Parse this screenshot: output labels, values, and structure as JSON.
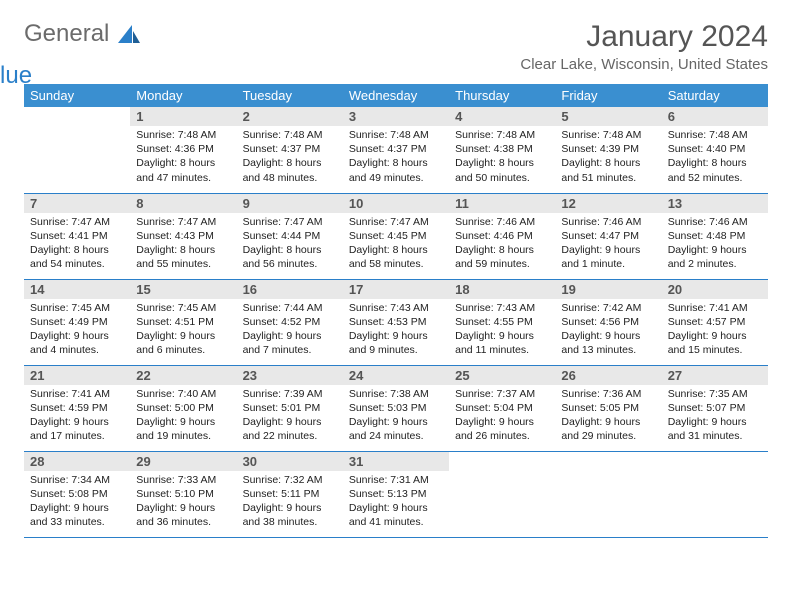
{
  "brand": {
    "part1": "General",
    "part2": "Blue"
  },
  "colors": {
    "header_bg": "#3a8fd0",
    "header_text": "#ffffff",
    "daynum_bg": "#e8e8e8",
    "daynum_text": "#555555",
    "body_text": "#222222",
    "rule": "#2a7fc9",
    "brand_gray": "#6b6b6b",
    "brand_blue": "#2a7fc9",
    "page_bg": "#ffffff"
  },
  "title": "January 2024",
  "location": "Clear Lake, Wisconsin, United States",
  "day_headers": [
    "Sunday",
    "Monday",
    "Tuesday",
    "Wednesday",
    "Thursday",
    "Friday",
    "Saturday"
  ],
  "weeks": [
    [
      {
        "n": "",
        "lines": [
          "",
          "",
          "",
          ""
        ]
      },
      {
        "n": "1",
        "lines": [
          "Sunrise: 7:48 AM",
          "Sunset: 4:36 PM",
          "Daylight: 8 hours",
          "and 47 minutes."
        ]
      },
      {
        "n": "2",
        "lines": [
          "Sunrise: 7:48 AM",
          "Sunset: 4:37 PM",
          "Daylight: 8 hours",
          "and 48 minutes."
        ]
      },
      {
        "n": "3",
        "lines": [
          "Sunrise: 7:48 AM",
          "Sunset: 4:37 PM",
          "Daylight: 8 hours",
          "and 49 minutes."
        ]
      },
      {
        "n": "4",
        "lines": [
          "Sunrise: 7:48 AM",
          "Sunset: 4:38 PM",
          "Daylight: 8 hours",
          "and 50 minutes."
        ]
      },
      {
        "n": "5",
        "lines": [
          "Sunrise: 7:48 AM",
          "Sunset: 4:39 PM",
          "Daylight: 8 hours",
          "and 51 minutes."
        ]
      },
      {
        "n": "6",
        "lines": [
          "Sunrise: 7:48 AM",
          "Sunset: 4:40 PM",
          "Daylight: 8 hours",
          "and 52 minutes."
        ]
      }
    ],
    [
      {
        "n": "7",
        "lines": [
          "Sunrise: 7:47 AM",
          "Sunset: 4:41 PM",
          "Daylight: 8 hours",
          "and 54 minutes."
        ]
      },
      {
        "n": "8",
        "lines": [
          "Sunrise: 7:47 AM",
          "Sunset: 4:43 PM",
          "Daylight: 8 hours",
          "and 55 minutes."
        ]
      },
      {
        "n": "9",
        "lines": [
          "Sunrise: 7:47 AM",
          "Sunset: 4:44 PM",
          "Daylight: 8 hours",
          "and 56 minutes."
        ]
      },
      {
        "n": "10",
        "lines": [
          "Sunrise: 7:47 AM",
          "Sunset: 4:45 PM",
          "Daylight: 8 hours",
          "and 58 minutes."
        ]
      },
      {
        "n": "11",
        "lines": [
          "Sunrise: 7:46 AM",
          "Sunset: 4:46 PM",
          "Daylight: 8 hours",
          "and 59 minutes."
        ]
      },
      {
        "n": "12",
        "lines": [
          "Sunrise: 7:46 AM",
          "Sunset: 4:47 PM",
          "Daylight: 9 hours",
          "and 1 minute."
        ]
      },
      {
        "n": "13",
        "lines": [
          "Sunrise: 7:46 AM",
          "Sunset: 4:48 PM",
          "Daylight: 9 hours",
          "and 2 minutes."
        ]
      }
    ],
    [
      {
        "n": "14",
        "lines": [
          "Sunrise: 7:45 AM",
          "Sunset: 4:49 PM",
          "Daylight: 9 hours",
          "and 4 minutes."
        ]
      },
      {
        "n": "15",
        "lines": [
          "Sunrise: 7:45 AM",
          "Sunset: 4:51 PM",
          "Daylight: 9 hours",
          "and 6 minutes."
        ]
      },
      {
        "n": "16",
        "lines": [
          "Sunrise: 7:44 AM",
          "Sunset: 4:52 PM",
          "Daylight: 9 hours",
          "and 7 minutes."
        ]
      },
      {
        "n": "17",
        "lines": [
          "Sunrise: 7:43 AM",
          "Sunset: 4:53 PM",
          "Daylight: 9 hours",
          "and 9 minutes."
        ]
      },
      {
        "n": "18",
        "lines": [
          "Sunrise: 7:43 AM",
          "Sunset: 4:55 PM",
          "Daylight: 9 hours",
          "and 11 minutes."
        ]
      },
      {
        "n": "19",
        "lines": [
          "Sunrise: 7:42 AM",
          "Sunset: 4:56 PM",
          "Daylight: 9 hours",
          "and 13 minutes."
        ]
      },
      {
        "n": "20",
        "lines": [
          "Sunrise: 7:41 AM",
          "Sunset: 4:57 PM",
          "Daylight: 9 hours",
          "and 15 minutes."
        ]
      }
    ],
    [
      {
        "n": "21",
        "lines": [
          "Sunrise: 7:41 AM",
          "Sunset: 4:59 PM",
          "Daylight: 9 hours",
          "and 17 minutes."
        ]
      },
      {
        "n": "22",
        "lines": [
          "Sunrise: 7:40 AM",
          "Sunset: 5:00 PM",
          "Daylight: 9 hours",
          "and 19 minutes."
        ]
      },
      {
        "n": "23",
        "lines": [
          "Sunrise: 7:39 AM",
          "Sunset: 5:01 PM",
          "Daylight: 9 hours",
          "and 22 minutes."
        ]
      },
      {
        "n": "24",
        "lines": [
          "Sunrise: 7:38 AM",
          "Sunset: 5:03 PM",
          "Daylight: 9 hours",
          "and 24 minutes."
        ]
      },
      {
        "n": "25",
        "lines": [
          "Sunrise: 7:37 AM",
          "Sunset: 5:04 PM",
          "Daylight: 9 hours",
          "and 26 minutes."
        ]
      },
      {
        "n": "26",
        "lines": [
          "Sunrise: 7:36 AM",
          "Sunset: 5:05 PM",
          "Daylight: 9 hours",
          "and 29 minutes."
        ]
      },
      {
        "n": "27",
        "lines": [
          "Sunrise: 7:35 AM",
          "Sunset: 5:07 PM",
          "Daylight: 9 hours",
          "and 31 minutes."
        ]
      }
    ],
    [
      {
        "n": "28",
        "lines": [
          "Sunrise: 7:34 AM",
          "Sunset: 5:08 PM",
          "Daylight: 9 hours",
          "and 33 minutes."
        ]
      },
      {
        "n": "29",
        "lines": [
          "Sunrise: 7:33 AM",
          "Sunset: 5:10 PM",
          "Daylight: 9 hours",
          "and 36 minutes."
        ]
      },
      {
        "n": "30",
        "lines": [
          "Sunrise: 7:32 AM",
          "Sunset: 5:11 PM",
          "Daylight: 9 hours",
          "and 38 minutes."
        ]
      },
      {
        "n": "31",
        "lines": [
          "Sunrise: 7:31 AM",
          "Sunset: 5:13 PM",
          "Daylight: 9 hours",
          "and 41 minutes."
        ]
      },
      {
        "n": "",
        "lines": [
          "",
          "",
          "",
          ""
        ]
      },
      {
        "n": "",
        "lines": [
          "",
          "",
          "",
          ""
        ]
      },
      {
        "n": "",
        "lines": [
          "",
          "",
          "",
          ""
        ]
      }
    ]
  ]
}
